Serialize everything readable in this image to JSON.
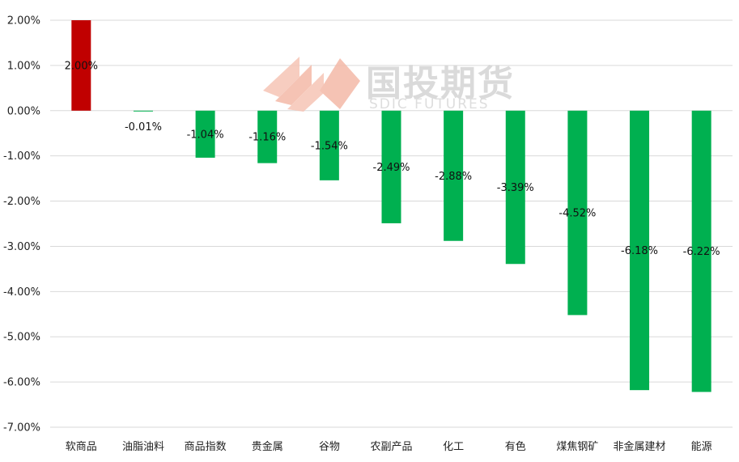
{
  "colors": {
    "positive": "#c00000",
    "negative": "#00b050",
    "grid": "#d9d9d9",
    "axis_text": "#222222",
    "watermark_logo": "#f4b9a8",
    "watermark_text": "#d4d4d4"
  },
  "watermark": {
    "name_cn": "国投期货",
    "name_en": "SDIC FUTURES"
  },
  "chart_data": {
    "type": "bar",
    "title": "",
    "xlabel": "",
    "ylabel": "",
    "ylim": [
      -7,
      2
    ],
    "ytick_step": 1,
    "y_tick_labels": [
      "2.00%",
      "1.00%",
      "0.00%",
      "-1.00%",
      "-2.00%",
      "-3.00%",
      "-4.00%",
      "-5.00%",
      "-6.00%",
      "-7.00%"
    ],
    "grid": true,
    "categories": [
      "软商品",
      "油脂油料",
      "商品指数",
      "贵金属",
      "谷物",
      "农副产品",
      "化工",
      "有色",
      "煤焦钢矿",
      "非金属建材",
      "能源"
    ],
    "values": [
      2.0,
      -0.01,
      -1.04,
      -1.16,
      -1.54,
      -2.49,
      -2.88,
      -3.39,
      -4.52,
      -6.18,
      -6.22
    ],
    "value_labels": [
      "2.00%",
      "-0.01%",
      "-1.04%",
      "-1.16%",
      "-1.54%",
      "-2.49%",
      "-2.88%",
      "-3.39%",
      "-4.52%",
      "-6.18%",
      "-6.22%"
    ]
  }
}
